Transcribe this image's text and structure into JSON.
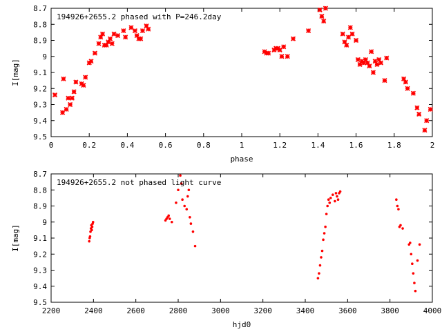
{
  "colors": {
    "points": "#ff0000",
    "axes": "#000000",
    "background": "#ffffff"
  },
  "chart_data": [
    {
      "type": "scatter",
      "title": "194926+2655.2 phased with P=246.2day",
      "xlabel": "phase",
      "ylabel": "I[mag]",
      "xlim": [
        0,
        2
      ],
      "ylim": [
        9.5,
        8.7
      ],
      "y_inverted": true,
      "xticks": [
        "0",
        "0.2",
        "0.4",
        "0.6",
        "0.8",
        "1",
        "1.2",
        "1.4",
        "1.6",
        "1.8",
        "2"
      ],
      "yticks": [
        "8.7",
        "8.8",
        "8.9",
        "9",
        "9.1",
        "9.2",
        "9.3",
        "9.4",
        "9.5"
      ],
      "grid": false,
      "marker": "cross",
      "series": [
        {
          "x": [
            0.02,
            0.06,
            0.065,
            0.08,
            0.09,
            0.1,
            0.11,
            0.12,
            0.13,
            0.16,
            0.17,
            0.18,
            0.2,
            0.21,
            0.23,
            0.25,
            0.26,
            0.27,
            0.28,
            0.29,
            0.3,
            0.31,
            0.32,
            0.33,
            0.35,
            0.38,
            0.39,
            0.42,
            0.44,
            0.45,
            0.46,
            0.47,
            0.48,
            0.5,
            0.51,
            1.12,
            1.13,
            1.14,
            1.17,
            1.18,
            1.19,
            1.2,
            1.21,
            1.22,
            1.24,
            1.27,
            1.35,
            1.41,
            1.42,
            1.43,
            1.44,
            1.53,
            1.54,
            1.55,
            1.56,
            1.57,
            1.58,
            1.6,
            1.61,
            1.62,
            1.63,
            1.64,
            1.65,
            1.66,
            1.67,
            1.68,
            1.69,
            1.7,
            1.71,
            1.72,
            1.73,
            1.75,
            1.76,
            1.85,
            1.86,
            1.87,
            1.9,
            1.92,
            1.93,
            1.96,
            1.97,
            1.99
          ],
          "y": [
            9.24,
            9.35,
            9.14,
            9.33,
            9.26,
            9.3,
            9.26,
            9.22,
            9.16,
            9.17,
            9.18,
            9.13,
            9.04,
            9.03,
            8.98,
            8.92,
            8.88,
            8.86,
            8.93,
            8.93,
            8.91,
            8.89,
            8.92,
            8.86,
            8.87,
            8.84,
            8.88,
            8.82,
            8.84,
            8.87,
            8.89,
            8.89,
            8.84,
            8.81,
            8.83,
            8.97,
            8.98,
            8.98,
            8.96,
            8.95,
            8.95,
            8.96,
            9.0,
            8.94,
            9.0,
            8.89,
            8.84,
            8.71,
            8.75,
            8.78,
            8.7,
            8.86,
            8.91,
            8.93,
            8.88,
            8.82,
            8.86,
            8.9,
            9.02,
            9.05,
            9.03,
            9.04,
            9.02,
            9.04,
            9.06,
            8.97,
            9.1,
            9.03,
            9.05,
            9.02,
            9.04,
            9.15,
            9.01,
            9.14,
            9.16,
            9.2,
            9.23,
            9.32,
            9.36,
            9.46,
            9.4,
            9.33
          ]
        }
      ]
    },
    {
      "type": "scatter",
      "title": "194926+2655.2 not phased light curve",
      "xlabel": "hjd0",
      "ylabel": "I[mag]",
      "xlim": [
        2200,
        4000
      ],
      "ylim": [
        9.5,
        8.7
      ],
      "y_inverted": true,
      "xticks": [
        "2200",
        "2400",
        "2600",
        "2800",
        "3000",
        "3200",
        "3400",
        "3600",
        "3800",
        "4000"
      ],
      "yticks": [
        "8.7",
        "8.8",
        "8.9",
        "9",
        "9.1",
        "9.2",
        "9.3",
        "9.4",
        "9.5"
      ],
      "grid": false,
      "marker": "dot",
      "series": [
        {
          "x": [
            2380,
            2382,
            2384,
            2386,
            2388,
            2390,
            2392,
            2394,
            2396,
            2398,
            2740,
            2745,
            2750,
            2755,
            2760,
            2770,
            2790,
            2800,
            2810,
            2815,
            2820,
            2830,
            2840,
            2845,
            2850,
            2855,
            2860,
            2870,
            2880,
            3460,
            3465,
            3470,
            3475,
            3480,
            3485,
            3490,
            3495,
            3500,
            3505,
            3510,
            3515,
            3520,
            3530,
            3540,
            3545,
            3550,
            3555,
            3560,
            3565,
            3830,
            3835,
            3840,
            3845,
            3850,
            3860,
            3890,
            3895,
            3900,
            3905,
            3910,
            3915,
            3920,
            3930,
            3940
          ],
          "y": [
            9.12,
            9.1,
            9.09,
            9.06,
            9.04,
            9.02,
            9.05,
            9.03,
            9.01,
            9.0,
            8.99,
            8.98,
            8.97,
            8.96,
            8.98,
            9.0,
            8.88,
            8.8,
            8.71,
            8.76,
            8.86,
            8.9,
            8.92,
            8.84,
            8.8,
            8.97,
            9.01,
            9.06,
            9.15,
            9.35,
            9.32,
            9.27,
            9.22,
            9.18,
            9.11,
            9.07,
            9.03,
            8.95,
            8.9,
            8.86,
            8.88,
            8.85,
            8.83,
            8.87,
            8.82,
            8.84,
            8.86,
            8.82,
            8.81,
            8.86,
            8.9,
            8.92,
            9.03,
            9.02,
            9.04,
            9.14,
            9.13,
            9.2,
            9.26,
            9.32,
            9.38,
            9.43,
            9.24,
            9.14
          ]
        }
      ]
    }
  ]
}
